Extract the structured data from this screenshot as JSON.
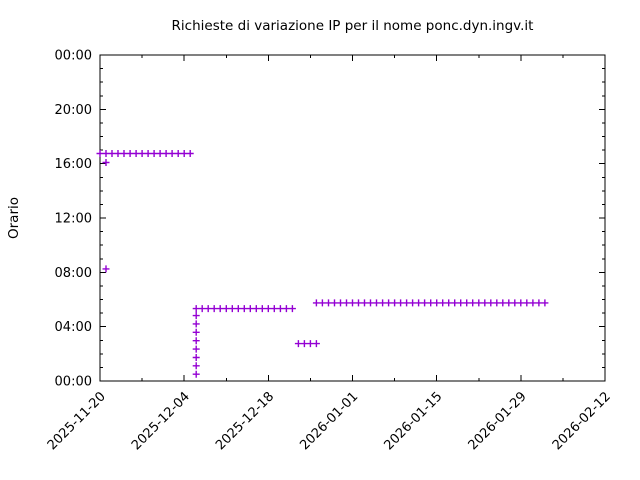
{
  "chart_data": {
    "type": "scatter",
    "title": "Richieste di variazione IP per il nome ponc.dyn.ingv.it",
    "xlabel": "",
    "ylabel": "Orario",
    "marker": "plus",
    "marker_color": "#9400D3",
    "background_color": "#ffffff",
    "axis_color": "#000000",
    "legend": "none",
    "grid": "off",
    "x_axis": {
      "type": "date",
      "start": "2025-11-20",
      "end": "2026-02-12",
      "major_tick_interval_days": 14,
      "minor_tick_interval_days": 7,
      "tick_label_rotation_deg": 45,
      "major_tick_labels": [
        "2025-11-20",
        "2025-12-04",
        "2025-12-18",
        "2026-01-01",
        "2026-01-15",
        "2026-01-29",
        "2026-02-12"
      ]
    },
    "y_axis": {
      "label": "Orario",
      "min_hour": 0,
      "max_hour": 24,
      "major_tick_interval_hours": 4,
      "minor_tick_interval_hours": 1,
      "major_tick_labels": [
        "00:00",
        "04:00",
        "08:00",
        "12:00",
        "16:00",
        "20:00",
        "00:00"
      ]
    },
    "points_single": [
      {
        "date": "2025-11-21",
        "time": "08:15"
      },
      {
        "date": "2025-11-21",
        "time": "16:05"
      }
    ],
    "burst": {
      "date": "2025-12-06",
      "times": [
        "00:30",
        "01:07",
        "01:44",
        "02:21",
        "02:58",
        "03:35",
        "04:12",
        "04:49"
      ]
    },
    "daily_runs": [
      {
        "start": "2025-11-20",
        "end": "2025-12-05",
        "time": "16:45"
      },
      {
        "start": "2025-12-06",
        "end": "2025-12-22",
        "time": "05:20"
      },
      {
        "start": "2025-12-23",
        "end": "2025-12-26",
        "time": "02:45"
      },
      {
        "start": "2025-12-26",
        "end": "2026-02-02",
        "time": "05:45"
      }
    ]
  }
}
